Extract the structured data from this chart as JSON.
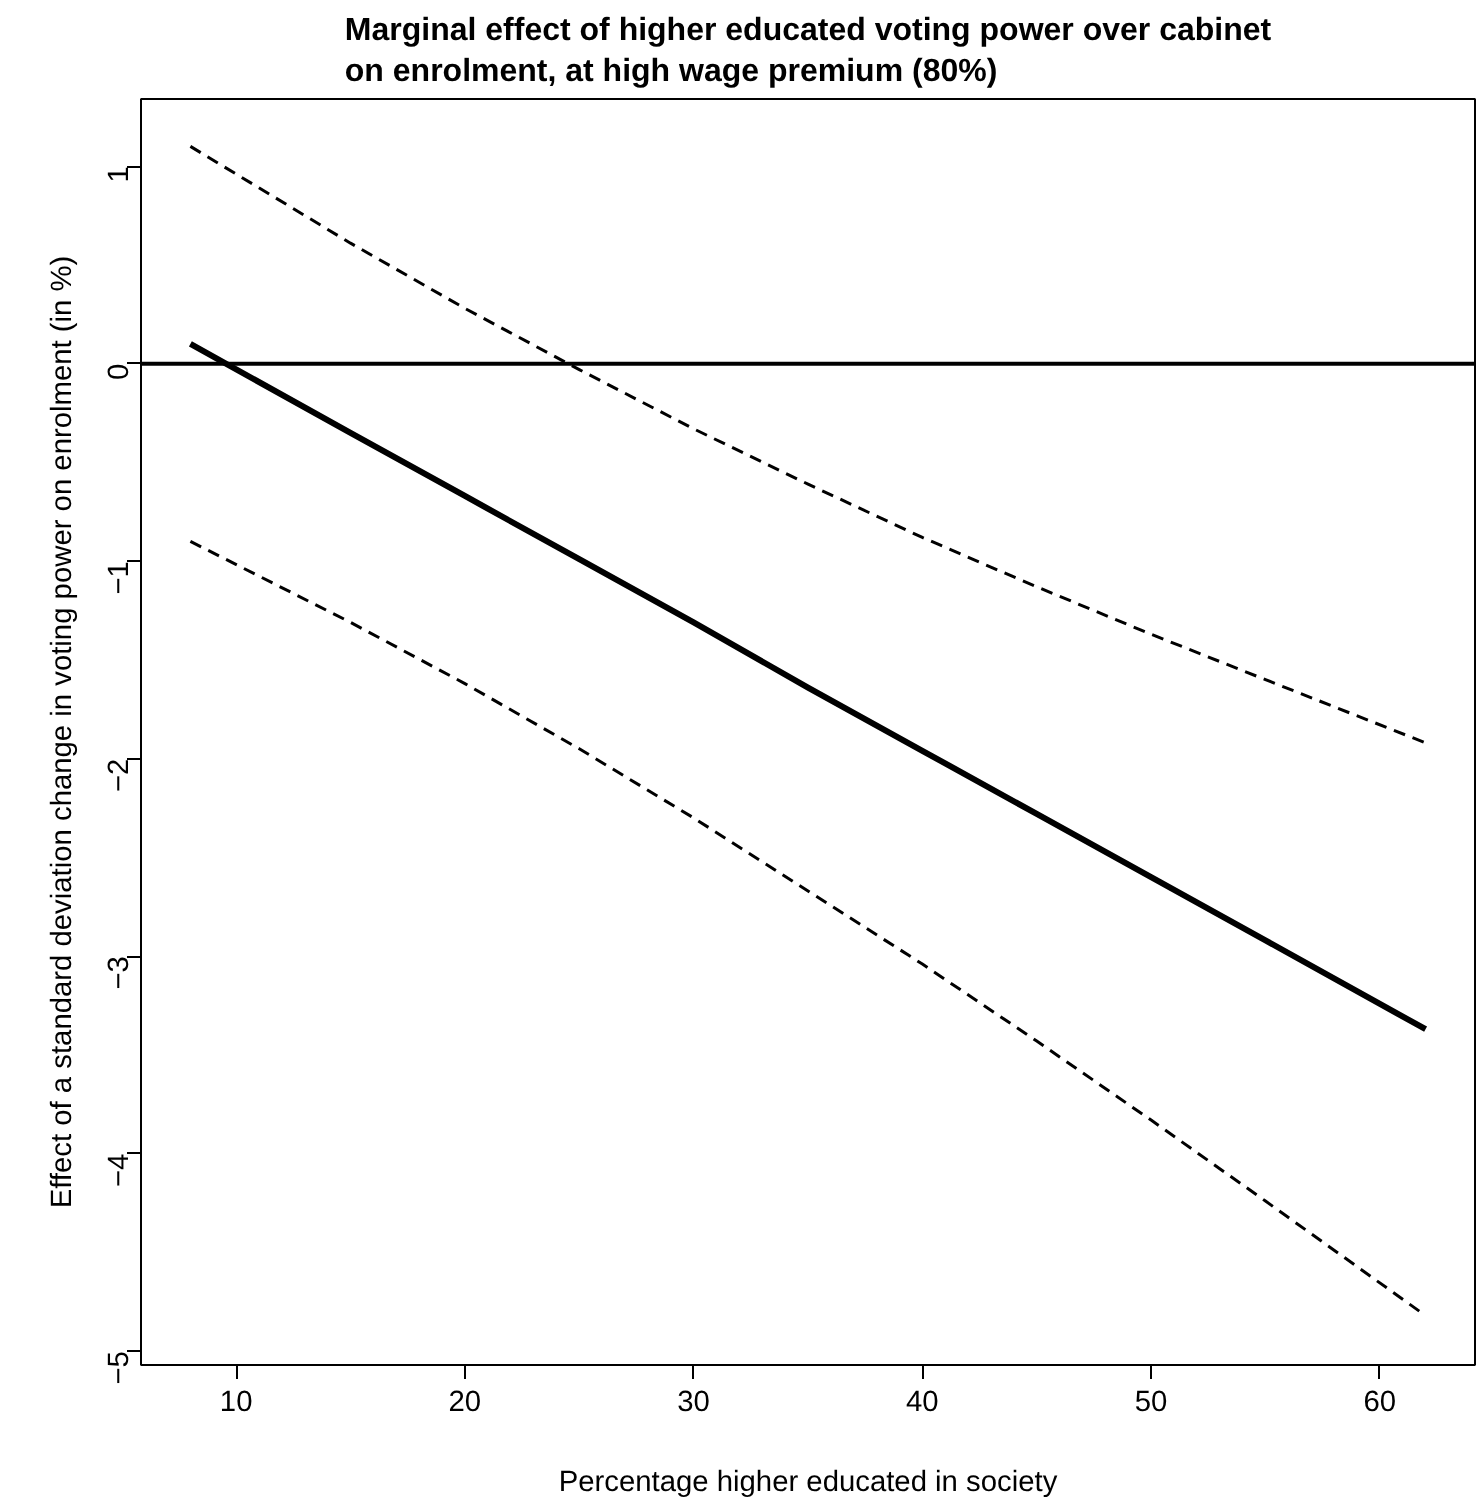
{
  "chart_data": {
    "type": "line",
    "title": "Marginal effect of higher educated voting power over cabinet\non enrolment, at high wage premium (80%)",
    "xlabel": "Percentage higher educated in society",
    "ylabel": "Effect of a standard deviation change in voting power on enrolment (in %)",
    "x": [
      8,
      15,
      20,
      25,
      30,
      35,
      40,
      45,
      50,
      55,
      62
    ],
    "series": [
      {
        "color": "#000000",
        "line_style": "solid",
        "values": [
          0.1,
          -0.35,
          -0.67,
          -0.99,
          -1.31,
          -1.64,
          -1.96,
          -2.28,
          -2.6,
          -2.92,
          -3.37
        ]
      },
      {
        "color": "#000000",
        "line_style": "dashed",
        "values": [
          1.1,
          0.61,
          0.28,
          -0.03,
          -0.33,
          -0.61,
          -0.88,
          -1.13,
          -1.37,
          -1.6,
          -1.92
        ]
      },
      {
        "color": "#000000",
        "line_style": "dashed",
        "values": [
          -0.9,
          -1.31,
          -1.62,
          -1.95,
          -2.3,
          -2.67,
          -3.04,
          -3.43,
          -3.83,
          -4.24,
          -4.82
        ]
      }
    ],
    "xlim": [
      5.84,
      64.16
    ],
    "ylim": [
      -5.07,
      1.34
    ],
    "xticks": [
      10,
      20,
      30,
      40,
      50,
      60
    ],
    "yticks": [
      {
        "value": -5,
        "label": "−5"
      },
      {
        "value": -4,
        "label": "−4"
      },
      {
        "value": -3,
        "label": "−3"
      },
      {
        "value": -2,
        "label": "−2"
      },
      {
        "value": -1,
        "label": "−1"
      },
      0,
      1
    ],
    "ref_lines": [
      {
        "axis": "y",
        "value": 0,
        "color": "#000000",
        "line_style": "solid"
      }
    ],
    "grid": false
  }
}
